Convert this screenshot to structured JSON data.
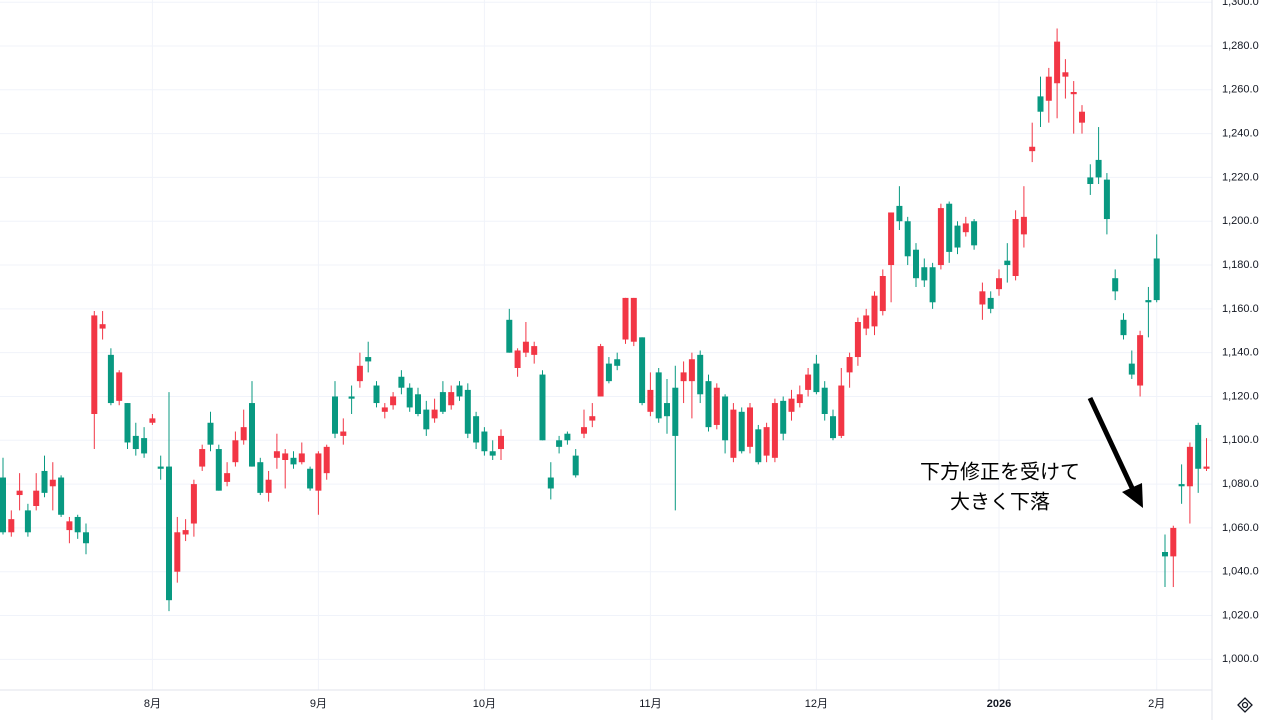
{
  "chart_data": {
    "type": "candlestick",
    "categories": [
      null,
      null,
      null,
      null,
      null,
      null,
      null,
      null,
      null,
      null,
      null,
      null,
      null,
      null,
      null,
      null,
      null,
      null,
      "8月",
      null,
      null,
      null,
      null,
      null,
      null,
      null,
      null,
      null,
      null,
      null,
      null,
      null,
      null,
      null,
      null,
      null,
      null,
      null,
      "9月",
      null,
      null,
      null,
      null,
      null,
      null,
      null,
      null,
      null,
      null,
      null,
      null,
      null,
      null,
      null,
      null,
      null,
      null,
      null,
      "10月",
      null,
      null,
      null,
      null,
      null,
      null,
      null,
      null,
      null,
      null,
      null,
      null,
      null,
      null,
      null,
      null,
      null,
      null,
      null,
      "11月",
      null,
      null,
      null,
      null,
      null,
      null,
      null,
      null,
      null,
      null,
      null,
      null,
      null,
      null,
      null,
      null,
      null,
      null,
      null,
      "12月",
      null,
      null,
      null,
      null,
      null,
      null,
      null,
      null,
      null,
      null,
      null,
      null,
      null,
      null,
      null,
      null,
      null,
      null,
      null,
      null,
      null,
      "2026",
      null,
      null,
      null,
      null,
      null,
      null,
      null,
      null,
      null,
      null,
      null,
      null,
      null,
      null,
      null,
      null,
      null,
      null,
      "2月",
      null,
      null,
      null,
      null,
      null,
      null
    ],
    "open": [
      1083,
      1058,
      1075,
      1068,
      1070,
      1086,
      1079,
      1083,
      1059,
      1065,
      1058,
      1112,
      1151,
      1139,
      1118,
      1117,
      1102,
      1101,
      1108,
      1088,
      1088,
      1040,
      1057,
      1062,
      1088,
      1108,
      1096,
      1081,
      1090,
      1100,
      1117,
      1090,
      1076,
      1092,
      1091,
      1092,
      1090,
      1087,
      1077,
      1085,
      1120,
      1102,
      1120,
      1127,
      1138,
      1125,
      1113,
      1116,
      1129,
      1124,
      1121,
      1114,
      1110,
      1122,
      1116,
      1125,
      1123,
      1111,
      1104,
      1095,
      1096,
      1155,
      1133,
      1140,
      1139,
      1130,
      1083,
      1100,
      1103,
      1093,
      1103,
      1109,
      1120,
      1135,
      1137,
      1146,
      1145,
      1147,
      1113,
      1131,
      1117,
      1124,
      1127,
      1127,
      1139,
      1127,
      1107,
      1120,
      1092,
      1113,
      1097,
      1105,
      1093,
      1092,
      1118,
      1113,
      1117,
      1123,
      1135,
      1124,
      1111,
      1102,
      1131,
      1138,
      1151,
      1152,
      1159,
      1180,
      1207,
      1200,
      1187,
      1179,
      1179,
      1180,
      1208,
      1198,
      1195,
      1200,
      1162,
      1165,
      1169,
      1182,
      1175,
      1194,
      1232,
      1257,
      1255,
      1263,
      1266,
      1258,
      1245,
      1220,
      1228,
      1219,
      1174,
      1155,
      1135,
      1125,
      1164,
      1183,
      1049,
      1047,
      1080,
      1079,
      1107,
      1087
    ],
    "high": [
      1092,
      1068,
      1085,
      1071,
      1085,
      1093,
      1090,
      1084,
      1065,
      1066,
      1062,
      1159,
      1159,
      1142,
      1132,
      1117,
      1108,
      1106,
      1112,
      1093,
      1122,
      1065,
      1064,
      1082,
      1098,
      1113,
      1098,
      1090,
      1104,
      1114,
      1127,
      1092,
      1086,
      1103,
      1096,
      1095,
      1099,
      1088,
      1095,
      1098,
      1127,
      1110,
      1125,
      1140,
      1145,
      1127,
      1117,
      1122,
      1132,
      1126,
      1124,
      1118,
      1119,
      1127,
      1125,
      1127,
      1126,
      1113,
      1106,
      1100,
      1105,
      1160,
      1142,
      1154,
      1145,
      1132,
      1090,
      1102,
      1104,
      1096,
      1114,
      1117,
      1144,
      1138,
      1140,
      1165,
      1165,
      1147,
      1131,
      1133,
      1128,
      1134,
      1136,
      1140,
      1141,
      1130,
      1126,
      1121,
      1117,
      1115,
      1117,
      1107,
      1108,
      1119,
      1120,
      1123,
      1125,
      1133,
      1139,
      1127,
      1114,
      1133,
      1140,
      1156,
      1160,
      1168,
      1178,
      1204,
      1216,
      1202,
      1190,
      1183,
      1181,
      1208,
      1209,
      1200,
      1202,
      1201,
      1172,
      1168,
      1178,
      1190,
      1205,
      1216,
      1245,
      1266,
      1270,
      1288,
      1274,
      1264,
      1253,
      1226,
      1243,
      1222,
      1178,
      1158,
      1141,
      1150,
      1170,
      1194,
      1057,
      1061,
      1089,
      1099,
      1108,
      1101
    ],
    "low": [
      1057,
      1056,
      1068,
      1056,
      1068,
      1074,
      1068,
      1065,
      1053,
      1055,
      1048,
      1096,
      1146,
      1116,
      1116,
      1096,
      1093,
      1092,
      1107,
      1082,
      1022,
      1035,
      1054,
      1056,
      1086,
      1095,
      1077,
      1079,
      1088,
      1098,
      1088,
      1075,
      1072,
      1087,
      1078,
      1087,
      1089,
      1077,
      1066,
      1082,
      1101,
      1098,
      1112,
      1124,
      1131,
      1115,
      1110,
      1114,
      1121,
      1113,
      1111,
      1102,
      1108,
      1112,
      1114,
      1118,
      1101,
      1096,
      1093,
      1091,
      1091,
      1140,
      1129,
      1138,
      1135,
      1100,
      1073,
      1094,
      1098,
      1083,
      1101,
      1106,
      1120,
      1126,
      1132,
      1144,
      1143,
      1116,
      1111,
      1108,
      1103,
      1068,
      1117,
      1110,
      1117,
      1104,
      1105,
      1094,
      1090,
      1094,
      1094,
      1089,
      1090,
      1090,
      1100,
      1109,
      1115,
      1120,
      1121,
      1109,
      1100,
      1101,
      1124,
      1134,
      1148,
      1148,
      1157,
      1163,
      1196,
      1180,
      1170,
      1170,
      1160,
      1178,
      1181,
      1185,
      1193,
      1187,
      1155,
      1158,
      1166,
      1172,
      1173,
      1188,
      1227,
      1243,
      1245,
      1247,
      1256,
      1240,
      1240,
      1212,
      1217,
      1194,
      1164,
      1146,
      1128,
      1120,
      1147,
      1163,
      1033,
      1033,
      1071,
      1062,
      1076,
      1086
    ],
    "close": [
      1058,
      1064,
      1077,
      1058,
      1077,
      1076,
      1082,
      1066,
      1063,
      1058,
      1053,
      1157,
      1153,
      1117,
      1131,
      1099,
      1096,
      1094,
      1110,
      1087,
      1027,
      1058,
      1059,
      1080,
      1096,
      1098,
      1077,
      1085,
      1100,
      1106,
      1088,
      1076,
      1082,
      1095,
      1094,
      1089,
      1094,
      1078,
      1094,
      1097,
      1103,
      1104,
      1119,
      1134,
      1136,
      1117,
      1115,
      1120,
      1124,
      1115,
      1112,
      1105,
      1114,
      1113,
      1122,
      1120,
      1103,
      1099,
      1095,
      1093,
      1102,
      1140,
      1141,
      1145,
      1143,
      1100,
      1078,
      1097,
      1100,
      1084,
      1106,
      1111,
      1143,
      1127,
      1134,
      1165,
      1165,
      1117,
      1123,
      1110,
      1111,
      1102,
      1131,
      1137,
      1121,
      1106,
      1124,
      1100,
      1114,
      1095,
      1115,
      1090,
      1106,
      1117,
      1103,
      1119,
      1121,
      1130,
      1122,
      1112,
      1101,
      1125,
      1138,
      1154,
      1157,
      1166,
      1175,
      1204,
      1200,
      1184,
      1174,
      1173,
      1163,
      1206,
      1186,
      1188,
      1199,
      1189,
      1168,
      1160,
      1174,
      1180,
      1201,
      1202,
      1234,
      1250,
      1266,
      1282,
      1268,
      1259,
      1250,
      1217,
      1220,
      1201,
      1168,
      1148,
      1130,
      1148,
      1163,
      1164,
      1047,
      1060,
      1079,
      1097,
      1087,
      1088
    ],
    "up_color": "#f23645",
    "down_color": "#089981",
    "ylim": [
      986,
      1301
    ],
    "yticks": [
      {
        "value": 1000,
        "label": "1,000.0"
      },
      {
        "value": 1020,
        "label": "1,020.0"
      },
      {
        "value": 1040,
        "label": "1,040.0"
      },
      {
        "value": 1060,
        "label": "1,060.0"
      },
      {
        "value": 1080,
        "label": "1,080.0"
      },
      {
        "value": 1100,
        "label": "1,100.0"
      },
      {
        "value": 1120,
        "label": "1,120.0"
      },
      {
        "value": 1140,
        "label": "1,140.0"
      },
      {
        "value": 1160,
        "label": "1,160.0"
      },
      {
        "value": 1180,
        "label": "1,180.0"
      },
      {
        "value": 1200,
        "label": "1,200.0"
      },
      {
        "value": 1220,
        "label": "1,220.0"
      },
      {
        "value": 1240,
        "label": "1,240.0"
      },
      {
        "value": 1260,
        "label": "1,260.0"
      },
      {
        "value": 1280,
        "label": "1,280.0"
      },
      {
        "value": 1300,
        "label": "1,300.0"
      }
    ],
    "grid": true,
    "annotation": [
      "下方修正を受けて",
      "大きく下落"
    ]
  }
}
